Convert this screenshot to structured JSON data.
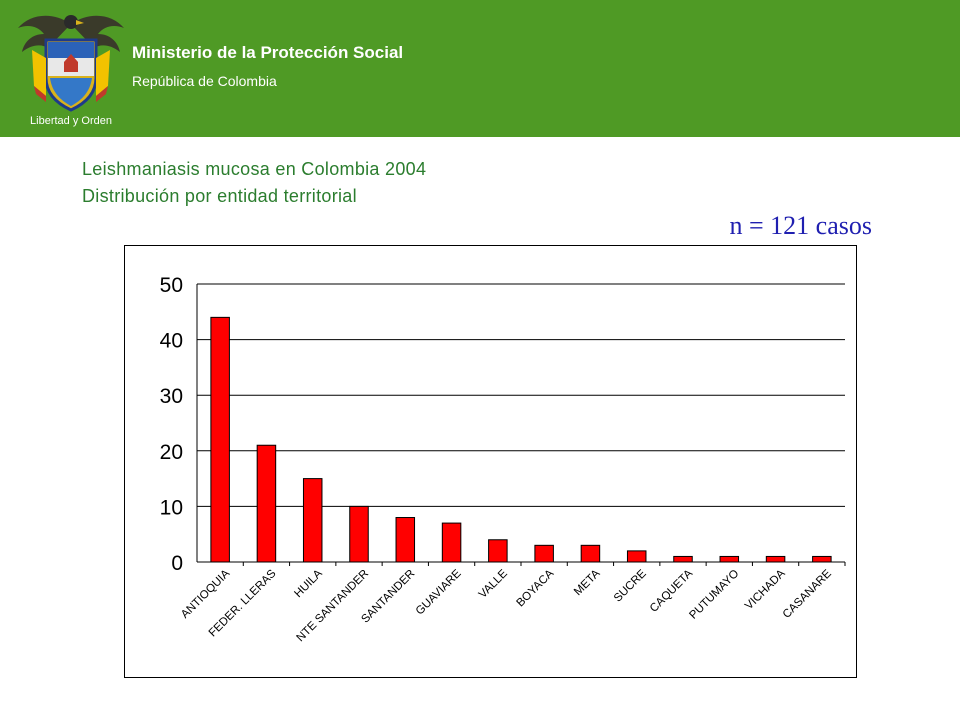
{
  "header": {
    "ministry": "Ministerio de la Protección Social",
    "republic": "República de Colombia",
    "motto": "Libertad y Orden",
    "background_color": "#4f9a25"
  },
  "ncases": "n = 121 casos",
  "chart_data": {
    "type": "bar",
    "title": "Leishmaniasis mucosa en Colombia 2004",
    "subtitle": "Distribución por entidad territorial",
    "categories": [
      "ANTIOQUIA",
      "FEDER. LLERAS",
      "HUILA",
      "NTE SANTANDER",
      "SANTANDER",
      "GUAVIARE",
      "VALLE",
      "BOYACA",
      "META",
      "SUCRE",
      "CAQUETA",
      "PUTUMAYO",
      "VICHADA",
      "CASANARE"
    ],
    "values": [
      44,
      21,
      15,
      10,
      8,
      7,
      4,
      3,
      3,
      2,
      1,
      1,
      1,
      1
    ],
    "yticks": [
      0,
      10,
      20,
      30,
      40,
      50
    ],
    "ylim": [
      0,
      50
    ],
    "grid": true,
    "bar_color": "#ff0000"
  }
}
